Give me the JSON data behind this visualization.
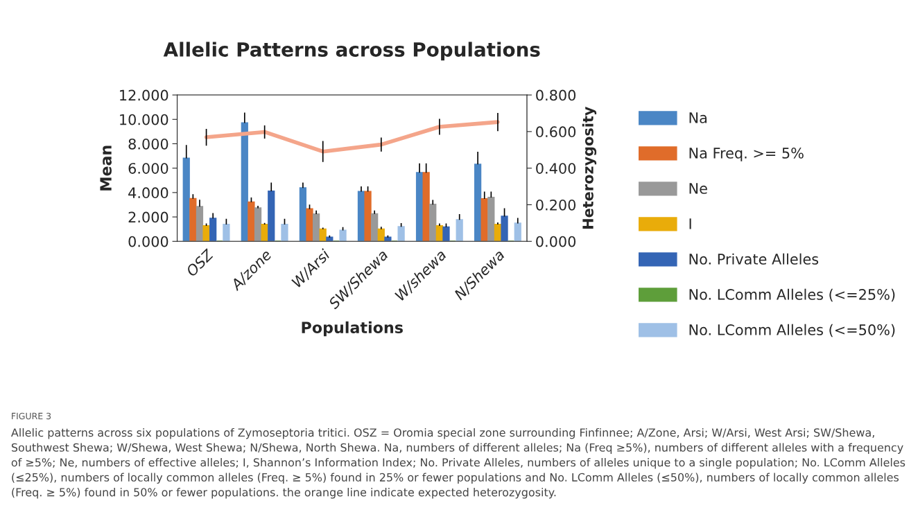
{
  "chart_data": {
    "type": "bar",
    "title": "Allelic Patterns across Populations",
    "xlabel": "Populations",
    "ylabel": "Mean",
    "y2label": "Heterozygosity",
    "categories": [
      "OSZ",
      "A/zone",
      "W/Arsi",
      "SW/Shewa",
      "W/shewa",
      "N/Shewa"
    ],
    "series": [
      {
        "name": "Na",
        "color": "#4a86c5",
        "values": [
          6.8,
          9.7,
          4.37,
          4.08,
          5.63,
          6.31
        ],
        "errors": [
          1.1,
          0.85,
          0.45,
          0.42,
          0.76,
          1.04
        ]
      },
      {
        "name": "Na Freq. >= 5%",
        "color": "#e06c2a",
        "values": [
          3.5,
          3.21,
          2.65,
          4.08,
          5.63,
          3.48
        ],
        "errors": [
          0.36,
          0.38,
          0.36,
          0.42,
          0.76,
          0.6
        ]
      },
      {
        "name": "Ne",
        "color": "#999999",
        "values": [
          2.84,
          2.72,
          2.23,
          2.25,
          3.02,
          3.59
        ],
        "errors": [
          0.57,
          0.2,
          0.3,
          0.28,
          0.38,
          0.49
        ]
      },
      {
        "name": "I",
        "color": "#e9ac0a",
        "values": [
          1.27,
          1.38,
          1.0,
          1.0,
          1.27,
          1.38
        ],
        "errors": [
          0.2,
          0.13,
          0.13,
          0.19,
          0.2,
          0.17
        ]
      },
      {
        "name": "No. Private Alleles",
        "color": "#3465b5",
        "values": [
          1.87,
          4.1,
          0.32,
          0.32,
          1.17,
          2.04
        ],
        "errors": [
          0.45,
          0.72,
          0.17,
          0.17,
          0.3,
          0.68
        ]
      },
      {
        "name": "No. LComm Alleles (<=25%)",
        "color": "#5e9e3a",
        "values": [
          0,
          0,
          0,
          0,
          0,
          0
        ]
      },
      {
        "name": "No. LComm Alleles (<=50%)",
        "color": "#9fc0e6",
        "values": [
          1.38,
          1.38,
          0.89,
          1.19,
          1.76,
          1.47
        ],
        "errors": [
          0.47,
          0.47,
          0.28,
          0.3,
          0.47,
          0.45
        ]
      },
      {
        "type": "line",
        "axis": "y2",
        "color": "#f4a58a",
        "values": [
          0.569,
          0.598,
          0.491,
          0.529,
          0.626,
          0.652
        ],
        "errors": [
          0.046,
          0.036,
          0.057,
          0.038,
          0.044,
          0.05
        ]
      }
    ],
    "ylim": [
      0,
      12
    ],
    "yticks": [
      {
        "value": 0,
        "label": "0.000"
      },
      {
        "value": 2,
        "label": "2.000"
      },
      {
        "value": 4,
        "label": "4.000"
      },
      {
        "value": 6,
        "label": "6.000"
      },
      {
        "value": 8,
        "label": "8.000"
      },
      {
        "value": 10,
        "label": "10.000"
      },
      {
        "value": 12,
        "label": "12.000"
      }
    ],
    "y2lim": [
      0,
      0.8
    ],
    "y2ticks": [
      {
        "value": 0,
        "label": "0.000"
      },
      {
        "value": 0.2,
        "label": "0.200"
      },
      {
        "value": 0.4,
        "label": "0.400"
      },
      {
        "value": 0.6,
        "label": "0.600"
      },
      {
        "value": 0.8,
        "label": "0.800"
      }
    ],
    "grid": false,
    "legend": "right",
    "annotations": [
      "FIGURE 3",
      "Allelic patterns across six populations of Zymoseptoria tritici. OSZ = Oromia special zone surrounding Finfinnee; A/Zone, Arsi; W/Arsi, West Arsi; SW/Shewa, Southwest Shewa; W/Shewa, West Shewa; N/Shewa, North Shewa. Na, numbers of different alleles; Na (Freq ≥5%), numbers of different alleles with a frequency of ≥5%; Ne, numbers of effective alleles; I, Shannon’s Information Index; No. Private Alleles, numbers of alleles unique to a single population; No. LComm Alleles (≤25%), numbers of locally common alleles (Freq. ≥ 5%) found in 25% or fewer populations and No. LComm Alleles (≤50%), numbers of locally common alleles (Freq. ≥ 5%) found in 50% or fewer populations. the orange line indicate expected heterozygosity."
    ]
  }
}
